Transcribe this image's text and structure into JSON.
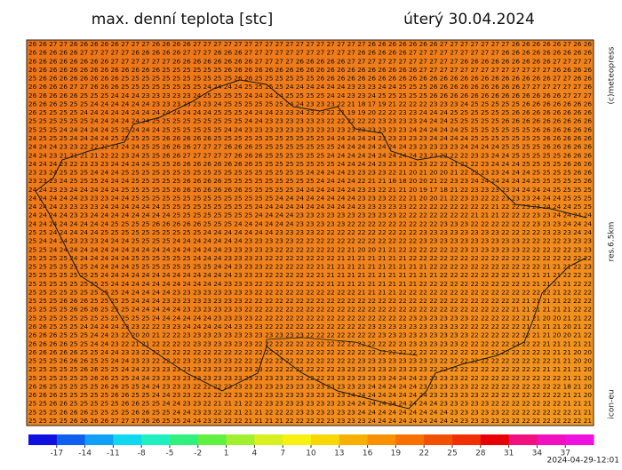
{
  "header": {
    "title": "max. denní teplota [stc]",
    "date": "úterý 30.04.2024"
  },
  "side_labels": {
    "copyright": "(c)meteopress",
    "resolution": "res.6.5km",
    "model": "icon-eu"
  },
  "timestamp": "2024-04-29-12:01",
  "colorbar": {
    "range": [
      -20,
      40
    ],
    "ticks": [
      -17,
      -14,
      -11,
      -8,
      -5,
      -2,
      1,
      4,
      7,
      10,
      13,
      16,
      19,
      22,
      25,
      28,
      31,
      34,
      37
    ],
    "colors": [
      "#1010e0",
      "#1060f0",
      "#10a0f8",
      "#10d8f0",
      "#20f0c0",
      "#30f080",
      "#60f040",
      "#a0f030",
      "#d8f020",
      "#f8f010",
      "#f8d800",
      "#f8b000",
      "#f89000",
      "#f87000",
      "#f05000",
      "#f03000",
      "#e80000",
      "#f01080",
      "#f010c0",
      "#f010e0"
    ]
  },
  "grid": {
    "rows": [
      "26 26 27 27 26 26 26 26 26 27 27 27 26 26 26 26 27 27 27 27 27 27 27 27 27 27 27 27 27 27 27 27 27 26 26 26 26 26 26 26 27 27 27 27 27 27 27 26 26 26 26 26 27 26 26",
      "26 26 26 26 26 27 27 27 27 27 26 26 26 26 26 27 27 27 26 26 26 27 27 27 27 27 27 27 27 27 27 27 26 26 26 26 26 27 27 27 27 27 27 27 27 27 26 26 26 26 26 26 26 26 26",
      "26 26 26 26 26 26 26 26 27 27 27 27 27 27 26 26 26 26 26 26 26 26 27 27 27 27 26 26 26 26 26 27 27 27 27 27 27 27 27 27 27 27 26 26 26 26 26 26 26 26 26 27 27 27 27",
      "26 26 26 26 26 26 26 26 26 26 26 26 26 25 25 25 25 25 25 26 26 26 26 26 26 26 26 26 26 26 26 26 26 26 26 26 26 26 27 27 27 27 27 27 27 27 27 27 27 27 27 26 26 26 26",
      "25 26 26 26 26 26 26 26 26 25 25 25 25 25 25 25 25 25 25 25 26 26 25 25 25 25 25 25 26 26 26 26 26 26 26 26 26 26 26 26 26 26 26 26 26 26 26 26 26 26 26 27 27 26 26",
      "26 26 26 26 27 27 26 26 26 25 25 25 25 25 25 25 25 24 24 24 24 25 25 25 25 24 24 24 24 24 24 23 23 23 24 24 25 25 25 26 26 26 26 26 26 26 26 26 27 27 27 27 27 27 26",
      "26 26 26 26 26 25 25 25 24 24 24 23 23 23 23 23 24 25 25 25 25 24 24 24 24 25 25 25 25 24 24 23 23 24 25 25 25 25 25 26 26 26 26 26 26 26 26 26 26 26 26 26 27 27 27",
      "26 26 26 25 25 25 24 24 24 24 24 24 23 23 23 23 23 23 24 25 25 25 25 25 25 24 24 23 23 23 22 21 18 17 19 21 22 22 22 23 23 23 24 25 25 25 25 25 26 26 26 26 26 26 26",
      "26 25 25 25 25 24 24 24 24 24 24 24 24 24 24 24 24 24 25 25 25 24 24 24 23 23 24 23 23 22 21 19 19 20 22 22 23 23 24 24 24 25 25 25 25 25 25 26 26 26 26 26 26 26 26",
      "25 25 25 25 25 25 24 24 24 24 24 24 25 25 25 25 25 25 25 25 25 24 24 23 23 23 23 23 23 22 22 22 22 22 23 23 23 23 24 24 24 25 25 25 25 25 26 26 26 26 26 26 26 26 26",
      "25 25 25 24 24 24 24 24 25 25 24 24 24 25 25 25 25 25 25 24 24 23 23 23 23 23 23 23 23 23 23 23 23 23 23 23 23 24 24 24 24 24 25 25 25 25 25 25 25 26 26 26 26 26 26",
      "24 25 25 25 24 24 24 24 25 25 25 25 25 26 26 26 26 26 25 25 25 25 25 25 25 25 25 25 25 24 24 24 24 24 23 23 23 23 23 24 24 24 24 25 25 25 25 25 25 25 26 26 26 26 26",
      "24 24 24 23 23 22 22 22 23 24 24 25 25 26 26 26 27 27 27 26 26 26 25 25 25 25 25 25 25 25 24 24 24 24 24 24 24 23 23 23 23 23 24 24 24 24 25 25 25 25 26 26 26 26 26",
      "24 24 23 21 21 21 21 22 22 23 24 25 25 26 26 27 27 27 27 27 26 26 26 25 25 25 25 25 25 24 24 24 24 24 24 24 24 24 23 23 22 22 22 23 23 24 24 25 25 25 25 25 26 26 26",
      "24 24 24 23 22 23 23 23 24 24 24 24 25 25 26 26 26 26 26 26 26 26 25 25 25 25 25 25 25 25 24 24 24 24 23 23 23 23 23 22 22 21 22 22 23 24 24 24 25 25 25 25 26 26 26",
      "23 23 24 25 25 25 24 24 24 25 25 25 25 25 25 25 25 25 25 25 25 25 25 25 25 25 25 24 24 24 24 23 23 23 23 22 21 20 21 20 20 21 22 22 23 23 24 24 24 25 25 25 25 26 26",
      "23 23 23 24 25 25 25 24 24 24 25 25 25 25 25 26 26 26 26 25 25 25 25 25 25 25 25 25 24 24 24 24 22 21 21 18 18 20 20 21 22 23 23 24 24 24 24 24 24 25 25 25 25 25 26",
      "24 24 23 23 24 24 24 24 24 25 25 25 25 25 26 26 26 26 26 26 26 25 25 25 25 25 24 24 24 24 24 24 23 23 22 21 21 20 19 17 18 21 22 23 23 23 23 24 24 24 24 25 25 25 25",
      "24 24 24 24 24 23 23 23 24 24 25 25 25 25 25 25 25 25 25 25 25 25 25 25 24 24 24 24 24 24 24 24 23 23 23 22 22 21 20 20 21 22 23 23 22 22 23 23 23 24 24 24 25 25 25",
      "24 24 24 23 23 23 23 24 24 24 24 24 24 25 25 25 25 25 25 25 25 25 24 24 24 24 24 24 24 24 24 24 23 23 23 23 23 22 22 22 22 22 22 22 22 21 22 22 23 23 24 24 24 25 25",
      "24 24 24 24 23 23 24 24 24 24 24 24 24 24 25 25 25 25 25 25 25 25 24 24 24 24 23 23 23 23 23 23 23 23 23 23 22 22 22 22 22 22 22 21 21 21 22 22 22 23 23 24 24 24 24",
      "24 24 24 24 24 24 24 24 25 25 25 25 26 26 26 26 26 25 25 25 24 24 24 24 24 24 23 23 23 23 23 22 22 22 22 22 22 22 22 22 23 23 23 22 22 22 22 22 22 23 23 23 24 24 24",
      "25 25 24 24 24 24 24 25 25 25 25 25 25 25 25 25 25 24 24 24 24 24 24 24 23 23 23 23 22 22 22 22 22 22 22 22 22 22 23 23 23 23 23 23 23 23 22 22 22 22 23 23 23 24 24",
      "25 24 24 24 23 23 23 24 24 24 25 25 25 25 24 24 24 24 24 24 24 23 23 23 23 23 22 22 22 22 22 22 22 22 22 22 22 22 23 23 23 23 23 23 23 23 23 23 22 22 22 22 23 23 23",
      "25 25 24 24 24 24 24 24 24 24 24 24 24 24 24 24 24 24 24 23 23 23 23 23 22 22 22 22 22 22 22 21 20 20 21 21 22 22 22 22 22 22 23 23 23 23 23 23 22 22 22 22 22 23 23",
      "25 25 25 25 24 24 24 24 24 24 25 25 25 25 25 25 24 24 24 23 23 23 23 22 22 22 22 22 22 22 21 21 21 21 21 21 21 22 22 22 22 22 22 22 22 22 22 22 22 22 22 22 22 22 22",
      "25 25 25 25 25 25 24 24 24 24 25 25 25 25 25 25 25 25 24 24 23 23 23 22 22 22 22 22 21 21 21 21 21 21 21 21 21 21 21 22 22 22 22 22 22 22 22 22 22 22 21 21 21 22 23",
      "25 25 25 25 25 25 25 24 24 24 24 24 24 24 24 24 24 24 24 24 23 23 23 22 22 22 22 22 21 21 21 21 21 21 21 21 21 21 21 21 22 22 22 22 22 22 22 22 21 21 21 21 22 22 23",
      "25 25 25 25 25 25 25 25 24 24 24 24 24 24 24 24 24 24 24 23 23 23 22 22 22 22 22 22 22 21 21 21 21 21 21 21 21 21 22 22 22 22 22 22 22 22 22 22 22 21 21 21 21 22 22",
      "25 25 25 25 25 25 25 25 25 24 24 24 24 24 23 23 23 23 23 23 23 23 22 22 22 22 22 22 22 22 22 22 21 21 21 21 22 22 22 22 22 22 22 22 22 22 22 22 22 22 22 21 22 22 22",
      "25 25 25 26 26 26 25 25 25 25 24 24 24 23 23 23 23 23 23 23 23 22 22 22 22 22 22 22 22 22 22 22 22 22 22 22 22 22 22 22 22 22 22 22 22 22 22 22 21 21 21 21 22 22 22",
      "25 25 25 25 26 26 26 25 25 25 24 24 24 24 24 23 23 23 23 23 23 22 22 22 22 22 22 22 22 22 22 22 22 22 22 22 22 22 22 22 22 22 22 22 22 22 22 21 21 21 21 21 21 22 22",
      "25 25 25 25 25 25 25 25 25 25 25 25 24 24 24 24 24 24 23 23 23 23 22 22 22 22 22 22 22 22 22 22 22 22 22 22 22 23 23 23 23 23 23 22 22 22 22 22 21 21 20 20 21 21 22",
      "26 26 25 25 25 24 24 24 24 23 23 22 22 23 23 24 24 24 24 24 23 23 23 22 22 22 22 22 22 22 22 22 22 23 23 23 23 23 23 23 23 23 22 22 22 22 22 22 21 21 21 21 20 21 22",
      "26 26 26 25 25 25 24 24 23 22 20 20 21 22 22 23 23 23 23 23 23 23 23 23 23 23 23 22 22 22 22 22 22 22 23 23 23 23 23 23 23 23 23 22 22 22 22 22 22 21 21 20 20 21 22",
      "26 26 26 26 25 25 24 24 23 22 21 21 22 22 22 22 23 23 23 23 23 23 22 22 22 22 22 22 22 22 22 22 22 22 22 22 23 23 23 23 23 23 22 22 22 22 22 22 22 22 21 21 21 21 21",
      "26 26 26 26 26 25 25 24 24 23 23 22 22 22 22 22 22 22 22 22 22 22 22 22 22 22 22 22 22 22 22 22 22 22 22 22 22 22 22 22 22 22 22 22 22 22 22 22 22 22 22 21 21 20 20",
      "25 25 25 26 26 26 25 25 24 24 23 23 22 22 22 23 23 23 23 23 22 22 22 22 22 22 22 22 22 22 22 22 23 23 23 23 23 23 23 23 22 22 22 22 22 22 22 22 22 22 22 21 21 20 20",
      "25 25 25 25 25 26 26 25 25 24 24 23 23 23 23 23 23 23 23 23 23 23 23 22 22 22 22 22 22 22 23 23 23 23 23 23 23 23 23 22 22 22 22 22 22 22 22 22 22 22 21 21 21 21 20",
      "25 25 25 25 25 25 26 26 25 25 24 24 23 23 23 23 23 23 23 23 23 23 23 23 23 23 22 22 22 23 23 23 23 23 23 24 24 24 23 23 23 23 22 22 22 22 22 22 22 22 22 22 21 21 20",
      "26 26 25 25 25 25 25 26 26 25 25 24 24 23 23 23 22 22 22 23 23 23 23 23 23 23 23 23 23 23 23 23 23 24 24 24 24 24 23 23 23 23 23 22 22 22 22 22 22 22 22 22 18 21 20",
      "26 26 26 25 25 25 25 25 26 26 25 25 24 24 23 23 22 22 22 22 23 23 23 23 23 23 23 23 23 23 23 24 24 24 24 24 24 24 24 23 23 23 23 23 22 22 22 22 22 22 22 22 21 21 20",
      "25 25 26 26 25 25 25 25 25 26 26 25 25 24 24 23 23 22 21 21 21 22 22 23 23 23 23 23 23 23 23 24 24 24 24 24 24 24 24 24 23 23 23 23 23 22 22 22 22 22 22 22 21 21 21",
      "25 25 25 26 26 26 25 25 25 25 26 26 25 25 24 24 23 23 22 22 21 21 21 22 22 22 23 23 23 23 23 23 24 24 24 24 24 24 24 24 24 23 23 23 23 23 22 22 22 22 22 22 22 21 21",
      "25 25 25 25 26 26 26 26 27 27 27 26 26 25 25 24 24 23 23 22 22 21 21 21 21 22 22 22 22 23 23 23 23 24 24 24 24 24 24 24 24 24 23 23 23 23 23 22 22 22 22 22 22 22 21"
    ]
  }
}
